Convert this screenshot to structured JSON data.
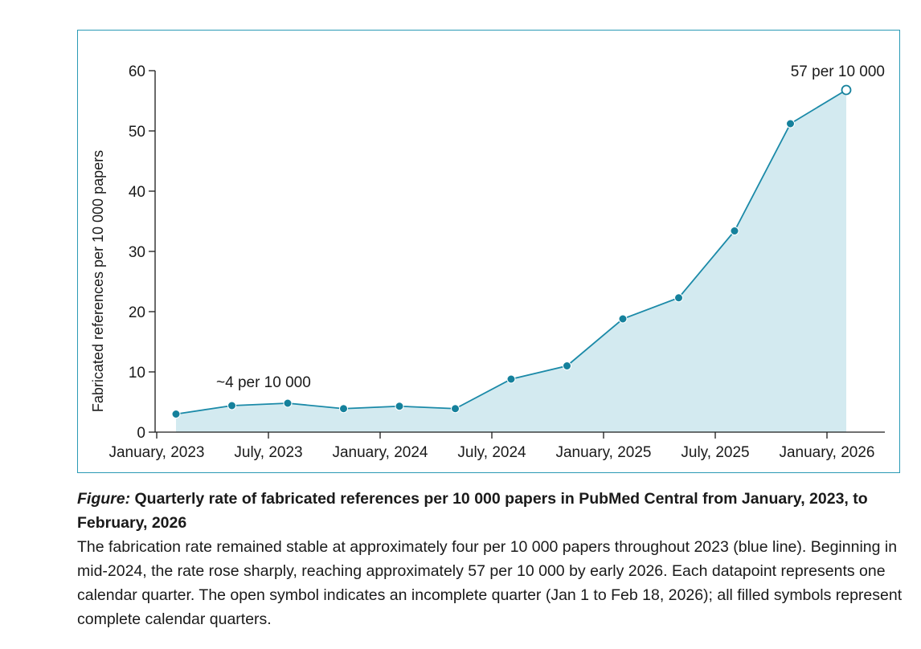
{
  "chart_data": {
    "type": "area",
    "ylabel": "Fabricated references per 10 000 papers",
    "xlabel": "",
    "ylim": [
      0,
      60
    ],
    "yticks": [
      0,
      10,
      20,
      30,
      40,
      50,
      60
    ],
    "xtick_labels": [
      "January, 2023",
      "July, 2023",
      "January, 2024",
      "July, 2024",
      "January, 2025",
      "July, 2025",
      "January, 2026"
    ],
    "x": [
      "Q1 2023",
      "Q2 2023",
      "Q3 2023",
      "Q4 2023",
      "Q1 2024",
      "Q2 2024",
      "Q3 2024",
      "Q4 2024",
      "Q1 2025",
      "Q2 2025",
      "Q3 2025",
      "Q4 2025",
      "Q1 2026"
    ],
    "values": [
      3.0,
      4.4,
      4.8,
      3.9,
      4.3,
      3.9,
      8.8,
      11.0,
      18.8,
      22.3,
      33.4,
      51.2,
      56.8
    ],
    "open_point_indices": [
      12
    ],
    "colors": {
      "line": "#1b8aa8",
      "fill": "#d3eaf0",
      "marker": "#15819c",
      "frame": "#2a9ab5"
    },
    "grid": false,
    "annotations": [
      {
        "text": "~4 per 10 000",
        "near_point": 1
      },
      {
        "text": "57 per 10 000",
        "near_point": 12
      }
    ]
  },
  "caption": {
    "title_lead": "Figure:",
    "title_rest": " Quarterly rate of fabricated references per 10 000 papers in PubMed Central from January, 2023, to February, 2026",
    "body": "The fabrication rate remained stable at approximately four per 10 000 papers throughout 2023 (blue line). Beginning in mid-2024, the rate rose sharply, reaching approximately 57 per 10 000 by early 2026. Each datapoint represents one calendar quarter. The open symbol indicates an incomplete quarter (Jan 1 to Feb 18, 2026); all filled symbols represent complete calendar quarters."
  }
}
